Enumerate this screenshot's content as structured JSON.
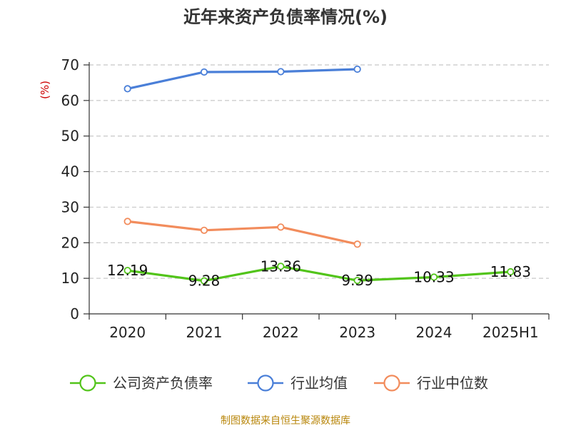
{
  "chart_data": {
    "type": "line",
    "title": "近年来资产负债率情况(%)",
    "ylabel": "(%)",
    "categories": [
      "2020",
      "2021",
      "2022",
      "2023",
      "2024",
      "2025H1"
    ],
    "ylim": [
      0,
      70
    ],
    "yticks": [
      "0",
      "10",
      "20",
      "30",
      "40",
      "50",
      "60",
      "70"
    ],
    "grid": true,
    "legend_position": "bottom",
    "series": [
      {
        "name": "公司资产负债率",
        "color": "#52c41a",
        "values": [
          12.19,
          9.28,
          13.36,
          9.39,
          10.33,
          11.83
        ],
        "labels": [
          "12.19",
          "9.28",
          "13.36",
          "9.39",
          "10.33",
          "11.83"
        ]
      },
      {
        "name": "行业均值",
        "color": "#4a7fd8",
        "values": [
          63.3,
          68.0,
          68.1,
          68.8,
          null,
          null
        ]
      },
      {
        "name": "行业中位数",
        "color": "#f28c5c",
        "values": [
          26.0,
          23.5,
          24.4,
          19.6,
          null,
          null
        ]
      }
    ],
    "source": "制图数据来自恒生聚源数据库"
  }
}
